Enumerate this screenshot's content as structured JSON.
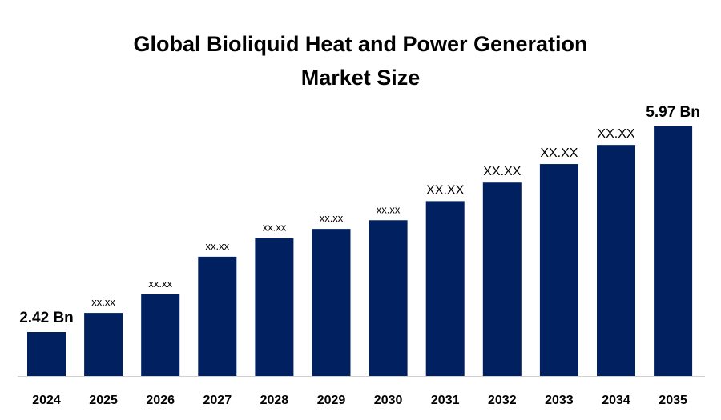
{
  "chart_data": {
    "type": "bar",
    "title_lines": [
      "Global Bioliquid Heat and Power Generation",
      "Market Size"
    ],
    "xlabel": "",
    "ylabel": "",
    "categories": [
      "2024",
      "2025",
      "2026",
      "2027",
      "2028",
      "2029",
      "2030",
      "2031",
      "2032",
      "2033",
      "2034",
      "2035"
    ],
    "values": [
      2.42,
      2.75,
      3.07,
      3.72,
      4.04,
      4.2,
      4.35,
      4.68,
      5.0,
      5.32,
      5.65,
      5.97
    ],
    "value_unit": "Bn",
    "data_labels": [
      "2.42 Bn",
      "xx.xx",
      "xx.xx",
      "xx.xx",
      "xx.xx",
      "xx.xx",
      "xx.xx",
      "XX.XX",
      "XX.XX",
      "XX.XX",
      "XX.XX",
      "5.97 Bn"
    ],
    "bar_color": "#002060",
    "grid": false,
    "legend": "none"
  }
}
